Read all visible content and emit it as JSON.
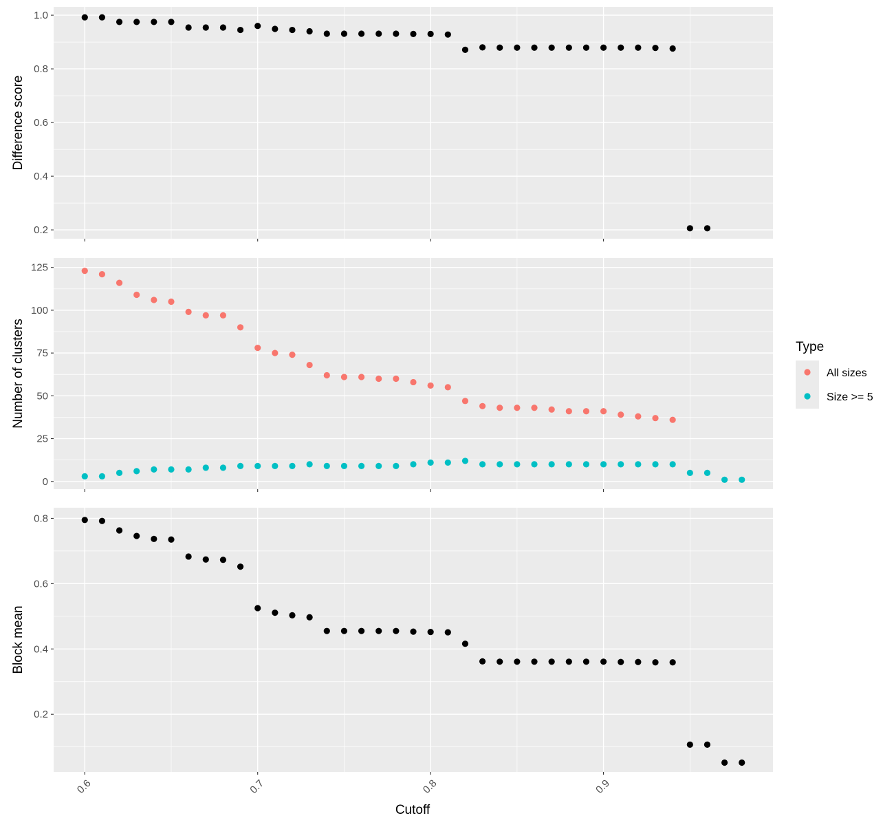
{
  "legend": {
    "title": "Type",
    "items": [
      {
        "label": "All sizes",
        "color": "#F8766D"
      },
      {
        "label": "Size >= 5",
        "color": "#00BFC4"
      }
    ]
  },
  "x_axis": {
    "label": "Cutoff",
    "ticks": [
      0.6,
      0.7,
      0.8,
      0.9
    ],
    "tick_labels": [
      "0.6",
      "0.7",
      "0.8",
      "0.9"
    ]
  },
  "chart_data": [
    {
      "type": "scatter",
      "title": "",
      "xlabel": "Cutoff",
      "ylabel": "Difference score",
      "xlim": [
        0.582,
        0.998
      ],
      "ylim": [
        0.167,
        1.031
      ],
      "yticks": [
        0.2,
        0.4,
        0.6,
        0.8,
        1.0
      ],
      "ytick_labels": [
        "0.2",
        "0.4",
        "0.6",
        "0.8",
        "1.0"
      ],
      "grid": true,
      "series": [
        {
          "color": "#000000",
          "x": [
            0.6,
            0.61,
            0.62,
            0.63,
            0.64,
            0.65,
            0.66,
            0.67,
            0.68,
            0.69,
            0.7,
            0.71,
            0.72,
            0.73,
            0.74,
            0.75,
            0.76,
            0.77,
            0.78,
            0.79,
            0.8,
            0.81,
            0.82,
            0.83,
            0.84,
            0.85,
            0.86,
            0.87,
            0.88,
            0.89,
            0.9,
            0.91,
            0.92,
            0.93,
            0.94,
            0.95,
            0.96
          ],
          "y": [
            0.992,
            0.992,
            0.975,
            0.975,
            0.975,
            0.975,
            0.954,
            0.954,
            0.954,
            0.945,
            0.96,
            0.949,
            0.945,
            0.94,
            0.931,
            0.931,
            0.931,
            0.931,
            0.931,
            0.93,
            0.93,
            0.928,
            0.871,
            0.88,
            0.879,
            0.879,
            0.879,
            0.879,
            0.879,
            0.879,
            0.879,
            0.879,
            0.879,
            0.878,
            0.876,
            0.206,
            0.206
          ]
        }
      ]
    },
    {
      "type": "scatter",
      "title": "",
      "xlabel": "Cutoff",
      "ylabel": "Number of clusters",
      "xlim": [
        0.582,
        0.998
      ],
      "ylim": [
        -4.5,
        130.5
      ],
      "yticks": [
        0,
        25,
        50,
        75,
        100,
        125
      ],
      "ytick_labels": [
        "0",
        "25",
        "50",
        "75",
        "100",
        "125"
      ],
      "grid": true,
      "legend_position": "right",
      "series": [
        {
          "name": "All sizes",
          "color": "#F8766D",
          "x": [
            0.6,
            0.61,
            0.62,
            0.63,
            0.64,
            0.65,
            0.66,
            0.67,
            0.68,
            0.69,
            0.7,
            0.71,
            0.72,
            0.73,
            0.74,
            0.75,
            0.76,
            0.77,
            0.78,
            0.79,
            0.8,
            0.81,
            0.82,
            0.83,
            0.84,
            0.85,
            0.86,
            0.87,
            0.88,
            0.89,
            0.9,
            0.91,
            0.92,
            0.93,
            0.94
          ],
          "y": [
            123,
            121,
            116,
            109,
            106,
            105,
            99,
            97,
            97,
            90,
            78,
            75,
            74,
            68,
            62,
            61,
            61,
            60,
            60,
            58,
            56,
            55,
            47,
            44,
            43,
            43,
            43,
            42,
            41,
            41,
            41,
            39,
            38,
            37,
            36
          ]
        },
        {
          "name": "Size >= 5",
          "color": "#00BFC4",
          "x": [
            0.6,
            0.61,
            0.62,
            0.63,
            0.64,
            0.65,
            0.66,
            0.67,
            0.68,
            0.69,
            0.7,
            0.71,
            0.72,
            0.73,
            0.74,
            0.75,
            0.76,
            0.77,
            0.78,
            0.79,
            0.8,
            0.81,
            0.82,
            0.83,
            0.84,
            0.85,
            0.86,
            0.87,
            0.88,
            0.89,
            0.9,
            0.91,
            0.92,
            0.93,
            0.94,
            0.95,
            0.96,
            0.97,
            0.98
          ],
          "y": [
            3,
            3,
            5,
            6,
            7,
            7,
            7,
            8,
            8,
            9,
            9,
            9,
            9,
            10,
            9,
            9,
            9,
            9,
            9,
            10,
            11,
            11,
            12,
            10,
            10,
            10,
            10,
            10,
            10,
            10,
            10,
            10,
            10,
            10,
            10,
            5,
            5,
            1,
            1
          ]
        }
      ]
    },
    {
      "type": "scatter",
      "title": "",
      "xlabel": "Cutoff",
      "ylabel": "Block mean",
      "xlim": [
        0.582,
        0.998
      ],
      "ylim": [
        0.0235,
        0.8325
      ],
      "yticks": [
        0.2,
        0.4,
        0.6,
        0.8
      ],
      "ytick_labels": [
        "0.2",
        "0.4",
        "0.6",
        "0.8"
      ],
      "grid": true,
      "series": [
        {
          "color": "#000000",
          "x": [
            0.6,
            0.61,
            0.62,
            0.63,
            0.64,
            0.65,
            0.66,
            0.67,
            0.68,
            0.69,
            0.7,
            0.71,
            0.72,
            0.73,
            0.74,
            0.75,
            0.76,
            0.77,
            0.78,
            0.79,
            0.8,
            0.81,
            0.82,
            0.83,
            0.84,
            0.85,
            0.86,
            0.87,
            0.88,
            0.89,
            0.9,
            0.91,
            0.92,
            0.93,
            0.94,
            0.95,
            0.96,
            0.97,
            0.98
          ],
          "y": [
            0.795,
            0.792,
            0.763,
            0.746,
            0.737,
            0.735,
            0.683,
            0.674,
            0.673,
            0.652,
            0.525,
            0.511,
            0.503,
            0.497,
            0.455,
            0.455,
            0.455,
            0.455,
            0.455,
            0.453,
            0.452,
            0.451,
            0.416,
            0.362,
            0.361,
            0.361,
            0.361,
            0.361,
            0.361,
            0.361,
            0.361,
            0.36,
            0.36,
            0.359,
            0.359,
            0.107,
            0.107,
            0.052,
            0.052
          ]
        }
      ]
    }
  ]
}
